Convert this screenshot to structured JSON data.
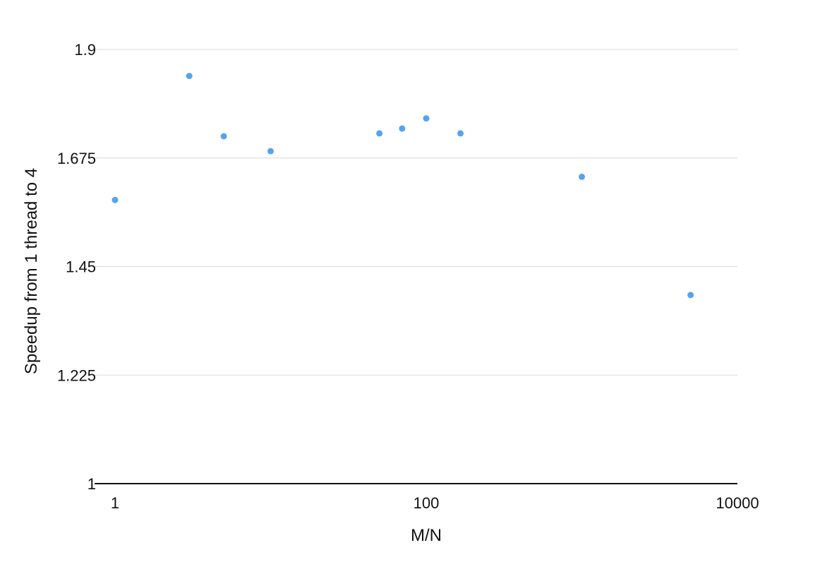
{
  "chart_data": {
    "type": "scatter",
    "title": "",
    "xlabel": "M/N",
    "ylabel": "Speedup from 1 thread to 4",
    "x_scale": "log",
    "xlim": [
      1,
      10000
    ],
    "ylim": [
      1,
      1.9
    ],
    "x_ticks": [
      1,
      100,
      10000
    ],
    "x_tick_labels": [
      "1",
      "100",
      "10000"
    ],
    "y_ticks": [
      1,
      1.225,
      1.45,
      1.675,
      1.9
    ],
    "y_tick_labels": [
      "1",
      "1.225",
      "1.45",
      "1.675",
      "1.9"
    ],
    "grid": true,
    "legend": "none",
    "series": [
      {
        "color": "#55a4ee",
        "points": [
          {
            "x": 1,
            "y": 1.588
          },
          {
            "x": 3,
            "y": 1.845
          },
          {
            "x": 5,
            "y": 1.72
          },
          {
            "x": 10,
            "y": 1.689
          },
          {
            "x": 50,
            "y": 1.726
          },
          {
            "x": 70,
            "y": 1.736
          },
          {
            "x": 100,
            "y": 1.757
          },
          {
            "x": 166,
            "y": 1.726
          },
          {
            "x": 1000,
            "y": 1.636
          },
          {
            "x": 5000,
            "y": 1.391
          }
        ]
      }
    ]
  },
  "style": {
    "grid_color": "#d9d9d9",
    "axis_color": "#111111",
    "text_color": "#111111"
  }
}
